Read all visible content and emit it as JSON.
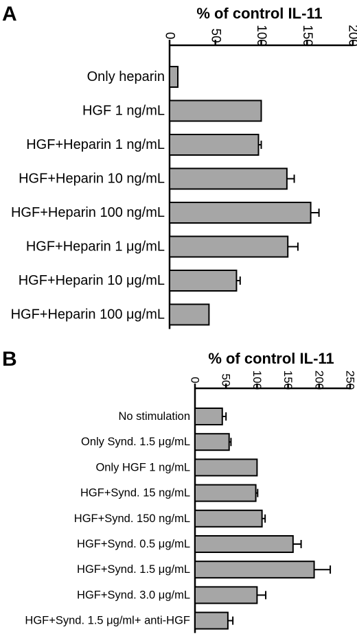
{
  "chart_data": [
    {
      "type": "bar",
      "orientation": "horizontal",
      "panel": "A",
      "xlabel": "% of control IL-11",
      "xlim": [
        0,
        200
      ],
      "xticks": [
        "0",
        "50",
        "100",
        "150",
        "200"
      ],
      "categories": [
        "Only heparin",
        "HGF 1 ng/mL",
        "HGF+Heparin 1 ng/mL",
        "HGF+Heparin 10 ng/mL",
        "HGF+Heparin 100 ng/mL",
        "HGF+Heparin 1 μg/mL",
        "HGF+Heparin 10 μg/mL",
        "HGF+Heparin 100 μg/mL"
      ],
      "values": [
        9,
        100,
        97,
        128,
        154,
        129,
        73,
        43
      ],
      "errors": [
        0,
        0,
        3,
        8,
        9,
        11,
        4,
        0
      ]
    },
    {
      "type": "bar",
      "orientation": "horizontal",
      "panel": "B",
      "xlabel": "% of control IL-11",
      "xlim": [
        0,
        250
      ],
      "xticks": [
        "0",
        "50",
        "100",
        "150",
        "200",
        "250"
      ],
      "categories": [
        "No stimulation",
        "Only Synd. 1.5 μg/mL",
        "Only HGF 1 ng/mL",
        "HGF+Synd. 15 ng/mL",
        "HGF+Synd. 150 ng/mL",
        "HGF+Synd. 0.5 μg/mL",
        "HGF+Synd. 1.5  μg/mL",
        "HGF+Synd. 3.0 μg/mL",
        "HGF+Synd. 1.5 μg/ml+ anti-HGF"
      ],
      "values": [
        44,
        55,
        100,
        98,
        108,
        158,
        192,
        100,
        53
      ],
      "errors": [
        6,
        3,
        0,
        3,
        5,
        13,
        26,
        14,
        8
      ]
    }
  ]
}
